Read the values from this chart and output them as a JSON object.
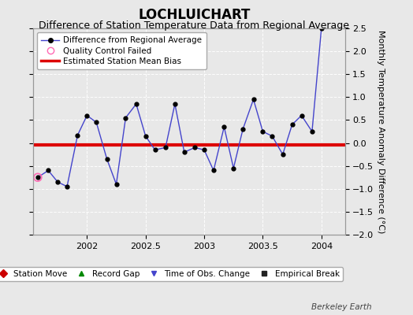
{
  "title": "LOCHLUICHART",
  "subtitle": "Difference of Station Temperature Data from Regional Average",
  "ylabel": "Monthly Temperature Anomaly Difference (°C)",
  "background_color": "#e8e8e8",
  "plot_bg_color": "#e8e8e8",
  "bias_value": -0.05,
  "xlim": [
    2001.54,
    2004.2
  ],
  "ylim": [
    -2.0,
    2.5
  ],
  "yticks": [
    -2.0,
    -1.5,
    -1.0,
    -0.5,
    0.0,
    0.5,
    1.0,
    1.5,
    2.0,
    2.5
  ],
  "xticks": [
    2002,
    2002.5,
    2003,
    2003.5,
    2004
  ],
  "line_color": "#4444cc",
  "marker_color": "#000000",
  "bias_color": "#dd0000",
  "qc_color": "#ff69b4",
  "x_data": [
    2001.58,
    2001.67,
    2001.75,
    2001.83,
    2001.92,
    2002.0,
    2002.08,
    2002.17,
    2002.25,
    2002.33,
    2002.42,
    2002.5,
    2002.58,
    2002.67,
    2002.75,
    2002.83,
    2002.92,
    2003.0,
    2003.08,
    2003.17,
    2003.25,
    2003.33,
    2003.42,
    2003.5,
    2003.58,
    2003.67,
    2003.75,
    2003.83,
    2003.92,
    2004.0
  ],
  "y_data": [
    -0.75,
    -0.6,
    -0.85,
    -0.95,
    0.17,
    0.6,
    0.45,
    -0.35,
    -0.9,
    0.55,
    0.85,
    0.15,
    -0.15,
    -0.1,
    0.85,
    -0.2,
    -0.1,
    -0.15,
    -0.6,
    0.35,
    -0.55,
    0.3,
    0.95,
    0.25,
    0.15,
    -0.25,
    0.4,
    0.6,
    0.25,
    2.5
  ],
  "qc_failed_x": [
    2001.58
  ],
  "qc_failed_y": [
    -0.75
  ],
  "legend1_items": [
    {
      "label": "Difference from Regional Average"
    },
    {
      "label": "Quality Control Failed"
    },
    {
      "label": "Estimated Station Mean Bias"
    }
  ],
  "legend2_items": [
    {
      "label": "Station Move",
      "color": "#cc0000",
      "marker": "D"
    },
    {
      "label": "Record Gap",
      "color": "#008800",
      "marker": "^"
    },
    {
      "label": "Time of Obs. Change",
      "color": "#4444cc",
      "marker": "v"
    },
    {
      "label": "Empirical Break",
      "color": "#222222",
      "marker": "s"
    }
  ],
  "watermark": "Berkeley Earth",
  "title_fontsize": 12,
  "subtitle_fontsize": 9,
  "tick_fontsize": 8,
  "ylabel_fontsize": 8
}
